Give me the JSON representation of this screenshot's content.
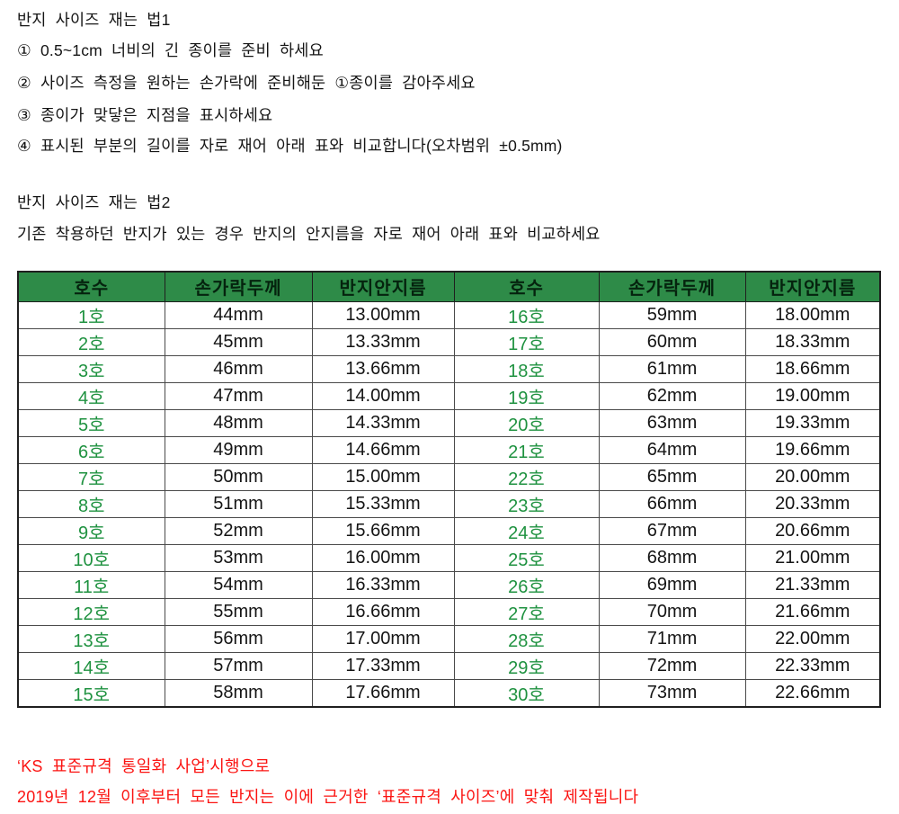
{
  "section1": {
    "title": "반지 사이즈 재는 법1",
    "steps": [
      "① 0.5~1cm 너비의 긴 종이를 준비 하세요",
      "② 사이즈 측정을 원하는 손가락에 준비해둔 ①종이를 감아주세요",
      "③ 종이가 맞닿은 지점을 표시하세요",
      "④ 표시된 부분의 길이를 자로 재어 아래 표와 비교합니다(오차범위 ±0.5mm)"
    ]
  },
  "section2": {
    "title": "반지 사이즈 재는 법2",
    "description": "기존 착용하던 반지가 있는 경우 반지의 안지름을 자로 재어 아래 표와 비교하세요"
  },
  "table": {
    "headers": [
      "호수",
      "손가락두께",
      "반지안지름",
      "호수",
      "손가락두께",
      "반지안지름"
    ],
    "rows": [
      [
        "1호",
        "44mm",
        "13.00mm",
        "16호",
        "59mm",
        "18.00mm"
      ],
      [
        "2호",
        "45mm",
        "13.33mm",
        "17호",
        "60mm",
        "18.33mm"
      ],
      [
        "3호",
        "46mm",
        "13.66mm",
        "18호",
        "61mm",
        "18.66mm"
      ],
      [
        "4호",
        "47mm",
        "14.00mm",
        "19호",
        "62mm",
        "19.00mm"
      ],
      [
        "5호",
        "48mm",
        "14.33mm",
        "20호",
        "63mm",
        "19.33mm"
      ],
      [
        "6호",
        "49mm",
        "14.66mm",
        "21호",
        "64mm",
        "19.66mm"
      ],
      [
        "7호",
        "50mm",
        "15.00mm",
        "22호",
        "65mm",
        "20.00mm"
      ],
      [
        "8호",
        "51mm",
        "15.33mm",
        "23호",
        "66mm",
        "20.33mm"
      ],
      [
        "9호",
        "52mm",
        "15.66mm",
        "24호",
        "67mm",
        "20.66mm"
      ],
      [
        "10호",
        "53mm",
        "16.00mm",
        "25호",
        "68mm",
        "21.00mm"
      ],
      [
        "11호",
        "54mm",
        "16.33mm",
        "26호",
        "69mm",
        "21.33mm"
      ],
      [
        "12호",
        "55mm",
        "16.66mm",
        "27호",
        "70mm",
        "21.66mm"
      ],
      [
        "13호",
        "56mm",
        "17.00mm",
        "28호",
        "71mm",
        "22.00mm"
      ],
      [
        "14호",
        "57mm",
        "17.33mm",
        "29호",
        "72mm",
        "22.33mm"
      ],
      [
        "15호",
        "58mm",
        "17.66mm",
        "30호",
        "73mm",
        "22.66mm"
      ]
    ]
  },
  "footer": {
    "line1": "‘KS 표준규격 통일화 사업’시행으로",
    "line2": "2019년 12월 이후부터 모든 반지는 이에 근거한 ‘표준규격 사이즈’에 맞춰 제작됩니다"
  },
  "colors": {
    "header_bg": "#2e8b48",
    "header_text": "#05230e",
    "size_green": "#1f9240",
    "cell_text": "#141414",
    "border_dark": "#1f1f1f",
    "border_light": "#4a4a4a",
    "red": "#fb1412"
  }
}
